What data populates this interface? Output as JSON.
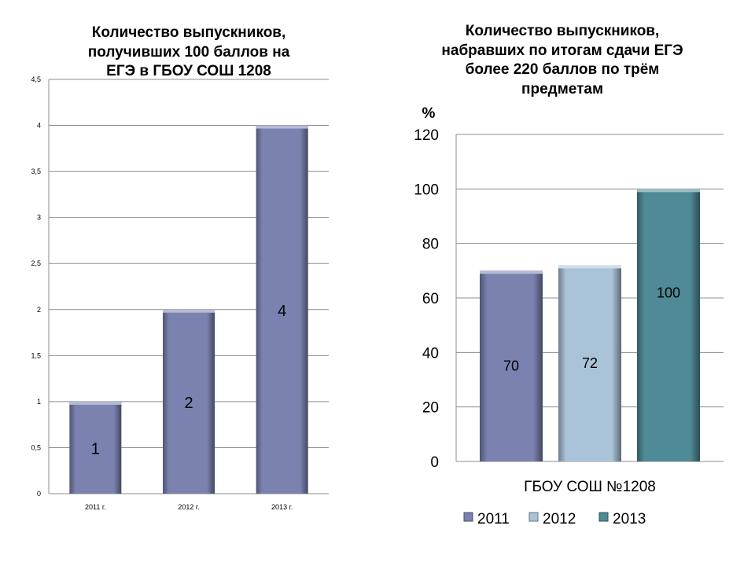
{
  "colors": {
    "bar2011": "#7b82b0",
    "bar2012": "#a9c3d9",
    "bar2013": "#4f8a96",
    "grid": "#8c8c8c",
    "axis": "#8c8c8c"
  },
  "chart_data": [
    {
      "type": "bar",
      "title_lines": [
        "Количество выпускников,",
        "получивших 100 баллов на",
        "ЕГЭ в ГБОУ СОШ 1208"
      ],
      "categories": [
        "2011 г.",
        "2012 г.",
        "2013 г."
      ],
      "values": [
        1,
        2,
        4
      ],
      "data_labels": [
        "1",
        "2",
        "4"
      ],
      "ylim": [
        0,
        4.5
      ],
      "yticks": [
        "0",
        "0,5",
        "1",
        "1,5",
        "2",
        "2,5",
        "3",
        "3,5",
        "4",
        "4,5"
      ],
      "grid": true
    },
    {
      "type": "bar",
      "title_lines": [
        "Количество выпускников,",
        "набравших по итогам сдачи ЕГЭ",
        "более 220 баллов по трём",
        "предметам"
      ],
      "ylabel": "%",
      "xlabel": "ГБОУ СОШ №1208",
      "series": [
        {
          "name": "2011",
          "values": [
            70
          ],
          "label": "70"
        },
        {
          "name": "2012",
          "values": [
            72
          ],
          "label": "72"
        },
        {
          "name": "2013",
          "values": [
            100
          ],
          "label": "100"
        }
      ],
      "ylim": [
        0,
        120
      ],
      "yticks": [
        "0",
        "20",
        "40",
        "60",
        "80",
        "100",
        "120"
      ],
      "legend": "bottom",
      "grid": true
    }
  ]
}
